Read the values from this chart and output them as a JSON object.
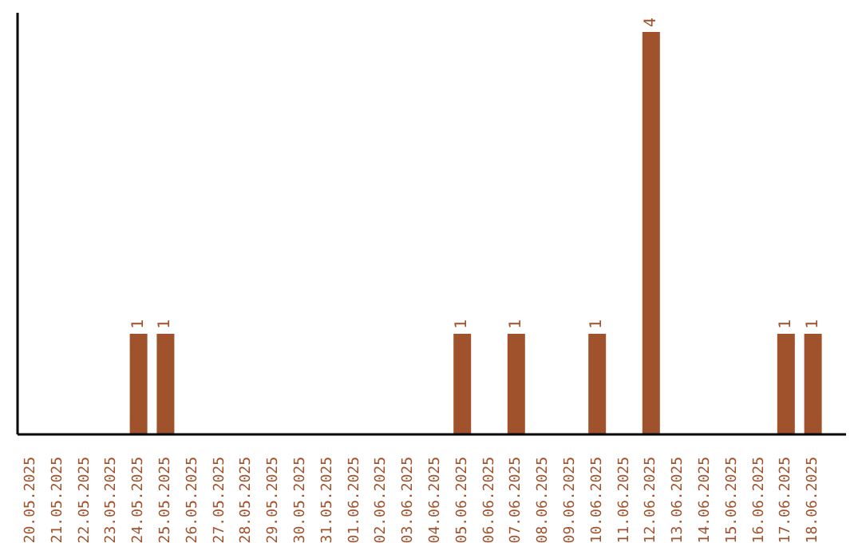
{
  "chart_data": {
    "type": "bar",
    "categories": [
      "20.05.2025",
      "21.05.2025",
      "22.05.2025",
      "23.05.2025",
      "24.05.2025",
      "25.05.2025",
      "26.05.2025",
      "27.05.2025",
      "28.05.2025",
      "29.05.2025",
      "30.05.2025",
      "31.05.2025",
      "01.06.2025",
      "02.06.2025",
      "03.06.2025",
      "04.06.2025",
      "05.06.2025",
      "06.06.2025",
      "07.06.2025",
      "08.06.2025",
      "09.06.2025",
      "10.06.2025",
      "11.06.2025",
      "12.06.2025",
      "13.06.2025",
      "14.06.2025",
      "15.06.2025",
      "16.06.2025",
      "17.06.2025",
      "18.06.2025"
    ],
    "values": [
      0,
      0,
      0,
      0,
      1,
      1,
      0,
      0,
      0,
      0,
      0,
      0,
      0,
      0,
      0,
      0,
      1,
      0,
      1,
      0,
      0,
      1,
      0,
      4,
      0,
      0,
      0,
      0,
      1,
      1
    ],
    "value_labels": [
      null,
      null,
      null,
      null,
      "1",
      "1",
      null,
      null,
      null,
      null,
      null,
      null,
      null,
      null,
      null,
      null,
      "1",
      null,
      "1",
      null,
      null,
      "1",
      null,
      "4",
      null,
      null,
      null,
      null,
      "1",
      "1"
    ],
    "color": "#a0522d",
    "grid": false,
    "legend": false
  }
}
